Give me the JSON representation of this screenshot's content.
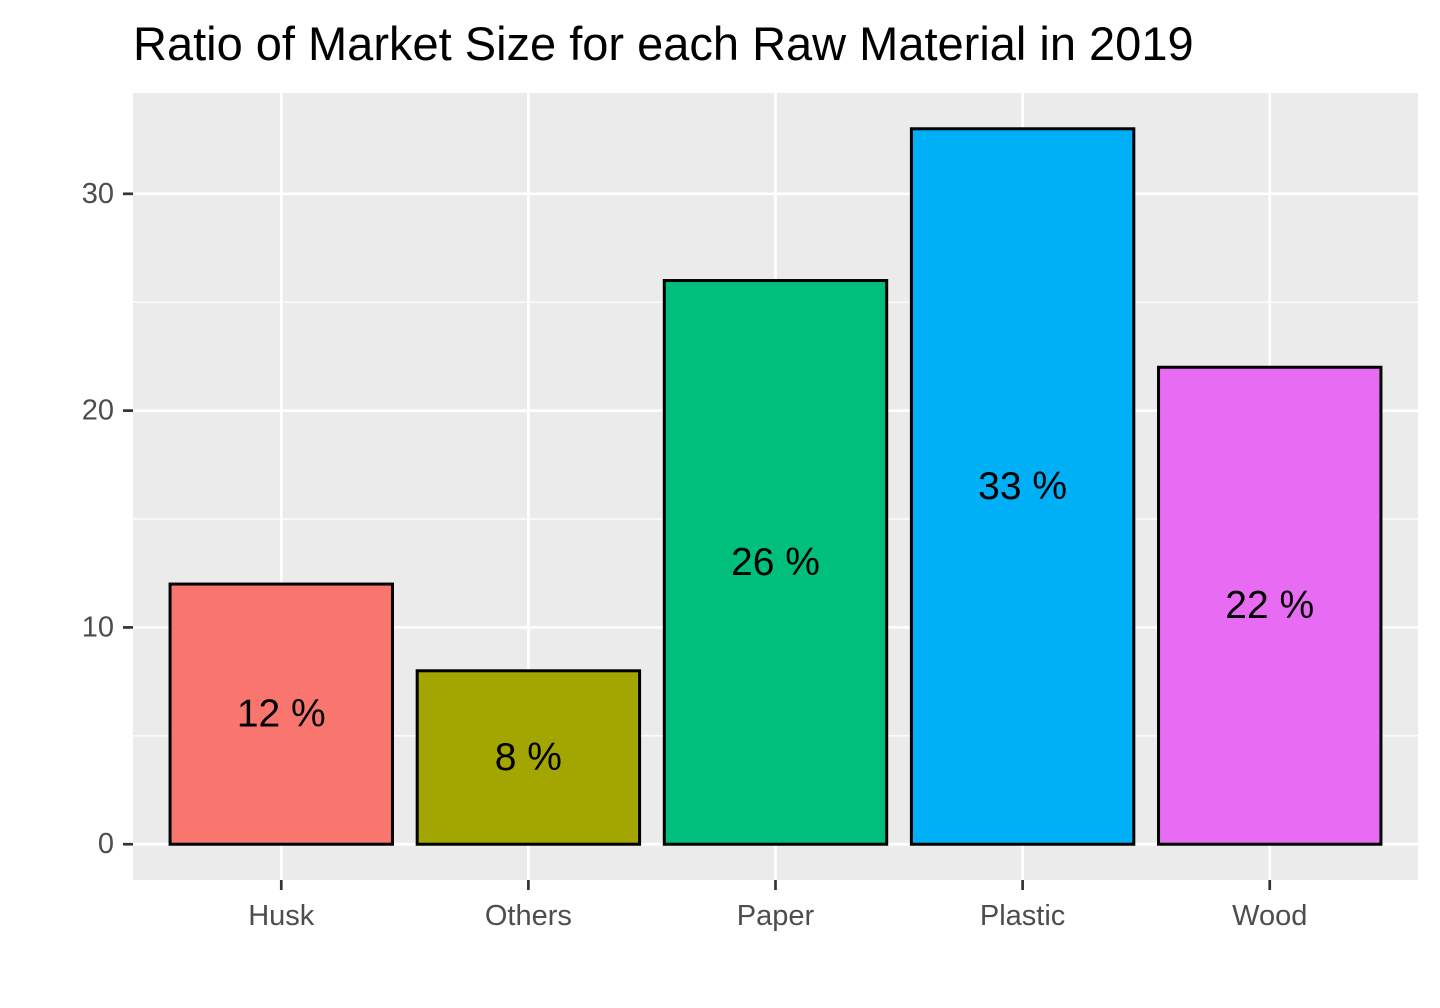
{
  "chart_data": {
    "type": "bar",
    "title": "Ratio of Market Size for each Raw Material in 2019",
    "xlabel": "",
    "ylabel": "",
    "categories": [
      "Husk",
      "Others",
      "Paper",
      "Plastic",
      "Wood"
    ],
    "values": [
      12,
      8,
      26,
      33,
      22
    ],
    "bar_labels": [
      "12 %",
      "8 %",
      "26 %",
      "33 %",
      "22 %"
    ],
    "colors": [
      "#F8766D",
      "#A3A500",
      "#00BF7D",
      "#00B0F6",
      "#E76BF3"
    ],
    "bar_outline_color": "#000000",
    "panel_background": "#EBEBEB",
    "gridline_color": "#FFFFFF",
    "ylim": [
      -1.65,
      34.65
    ],
    "yticks": [
      0,
      10,
      20,
      30
    ],
    "ytick_labels": [
      "0",
      "10",
      "20",
      "30"
    ],
    "grid": true,
    "legend": "none"
  }
}
